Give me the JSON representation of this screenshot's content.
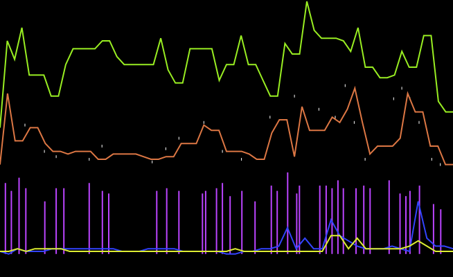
{
  "window": {
    "background": "#000000"
  },
  "graph": {
    "x_range": [
      0,
      100
    ],
    "y_range": [
      0,
      100
    ],
    "series": [
      {
        "id": "green",
        "kind": "line",
        "color": "#99ee22",
        "values": [
          52,
          85,
          78,
          90,
          72,
          72,
          72,
          64,
          64,
          76,
          82,
          82,
          82,
          82,
          85,
          85,
          79,
          76,
          76,
          76,
          76,
          76,
          86,
          74,
          69,
          69,
          82,
          82,
          82,
          82,
          70,
          76,
          76,
          87,
          76,
          76,
          70,
          64,
          64,
          84,
          80,
          80,
          100,
          89,
          86,
          86,
          86,
          85,
          81,
          90,
          75,
          75,
          71,
          71,
          72,
          81,
          75,
          75,
          87,
          87,
          62,
          58,
          58
        ]
      },
      {
        "id": "orange",
        "kind": "line",
        "color": "#dd7744",
        "values": [
          38,
          65,
          47,
          47,
          52,
          52,
          46,
          43,
          43,
          42,
          43,
          43,
          43,
          40,
          40,
          42,
          42,
          42,
          42,
          41,
          40,
          40,
          41,
          41,
          46,
          46,
          46,
          53,
          51,
          51,
          43,
          43,
          43,
          42,
          40,
          40,
          50,
          55,
          55,
          41,
          60,
          51,
          51,
          51,
          56,
          54,
          59,
          67,
          54,
          42,
          45,
          45,
          45,
          48,
          65,
          58,
          58,
          45,
          45,
          38,
          38
        ]
      },
      {
        "id": "blue",
        "kind": "line",
        "color": "#3344ff",
        "values": [
          5,
          4,
          6,
          5,
          5,
          5,
          6,
          6,
          6,
          6,
          6,
          6,
          6,
          6,
          5,
          5,
          5,
          6,
          6,
          6,
          6,
          5,
          5,
          5,
          5,
          5,
          4,
          4,
          5,
          5,
          6,
          6,
          7,
          14,
          6,
          10,
          6,
          6,
          17,
          11,
          9,
          7,
          6,
          6,
          6,
          7,
          6,
          5,
          24,
          10,
          7,
          7,
          6
        ]
      },
      {
        "id": "yellow",
        "kind": "line",
        "color": "#ddee33",
        "values": [
          5,
          5,
          6,
          5,
          6,
          6,
          6,
          6,
          5,
          5,
          5,
          5,
          5,
          5,
          5,
          5,
          5,
          5,
          5,
          5,
          5,
          5,
          5,
          5,
          5,
          5,
          5,
          6,
          5,
          5,
          5,
          5,
          5,
          5,
          5,
          5,
          5,
          5,
          11,
          11,
          6,
          10,
          6,
          6,
          6,
          6,
          6,
          7,
          9,
          7,
          5,
          5,
          5
        ]
      },
      {
        "id": "purple-spikes",
        "kind": "spikes",
        "color": "#bb44ff",
        "baseline": 4,
        "points": [
          {
            "x": 1.2,
            "y": 31
          },
          {
            "x": 2.5,
            "y": 28
          },
          {
            "x": 4.2,
            "y": 33
          },
          {
            "x": 5.7,
            "y": 29
          },
          {
            "x": 9.9,
            "y": 24
          },
          {
            "x": 12.4,
            "y": 29
          },
          {
            "x": 14.1,
            "y": 29
          },
          {
            "x": 19.7,
            "y": 31
          },
          {
            "x": 22.6,
            "y": 28
          },
          {
            "x": 24.0,
            "y": 27
          },
          {
            "x": 34.6,
            "y": 28
          },
          {
            "x": 36.8,
            "y": 29
          },
          {
            "x": 39.5,
            "y": 28
          },
          {
            "x": 44.7,
            "y": 27
          },
          {
            "x": 45.4,
            "y": 28
          },
          {
            "x": 47.8,
            "y": 29
          },
          {
            "x": 49.1,
            "y": 31
          },
          {
            "x": 50.8,
            "y": 26
          },
          {
            "x": 53.4,
            "y": 28
          },
          {
            "x": 56.3,
            "y": 24
          },
          {
            "x": 59.9,
            "y": 30
          },
          {
            "x": 61.2,
            "y": 28
          },
          {
            "x": 63.5,
            "y": 35
          },
          {
            "x": 65.5,
            "y": 27
          },
          {
            "x": 66.1,
            "y": 30
          },
          {
            "x": 70.6,
            "y": 30
          },
          {
            "x": 72.0,
            "y": 30
          },
          {
            "x": 73.3,
            "y": 29
          },
          {
            "x": 74.6,
            "y": 32
          },
          {
            "x": 75.8,
            "y": 29
          },
          {
            "x": 78.6,
            "y": 29
          },
          {
            "x": 80.3,
            "y": 30
          },
          {
            "x": 81.7,
            "y": 29
          },
          {
            "x": 85.9,
            "y": 32
          },
          {
            "x": 88.3,
            "y": 27
          },
          {
            "x": 89.6,
            "y": 26
          },
          {
            "x": 90.5,
            "y": 28
          },
          {
            "x": 92.6,
            "y": 30
          },
          {
            "x": 95.7,
            "y": 23
          },
          {
            "x": 97.3,
            "y": 21
          }
        ]
      },
      {
        "id": "tick-marks",
        "kind": "ticks",
        "color": "#ffffff",
        "points": [
          {
            "x": 5.5,
            "y": 53
          },
          {
            "x": 9.8,
            "y": 43
          },
          {
            "x": 12.4,
            "y": 41
          },
          {
            "x": 19.7,
            "y": 40
          },
          {
            "x": 22.5,
            "y": 45
          },
          {
            "x": 33.6,
            "y": 39
          },
          {
            "x": 36.6,
            "y": 44
          },
          {
            "x": 39.5,
            "y": 48
          },
          {
            "x": 45.0,
            "y": 54
          },
          {
            "x": 49.1,
            "y": 43
          },
          {
            "x": 53.3,
            "y": 40
          },
          {
            "x": 59.6,
            "y": 56
          },
          {
            "x": 65.0,
            "y": 64
          },
          {
            "x": 70.4,
            "y": 59
          },
          {
            "x": 74.0,
            "y": 56
          },
          {
            "x": 76.2,
            "y": 68
          },
          {
            "x": 78.2,
            "y": 54
          },
          {
            "x": 80.6,
            "y": 40
          },
          {
            "x": 86.9,
            "y": 63
          },
          {
            "x": 88.7,
            "y": 67
          },
          {
            "x": 90.5,
            "y": 63
          },
          {
            "x": 92.5,
            "y": 54
          },
          {
            "x": 95.3,
            "y": 40
          },
          {
            "x": 97.2,
            "y": 38
          }
        ]
      }
    ]
  }
}
